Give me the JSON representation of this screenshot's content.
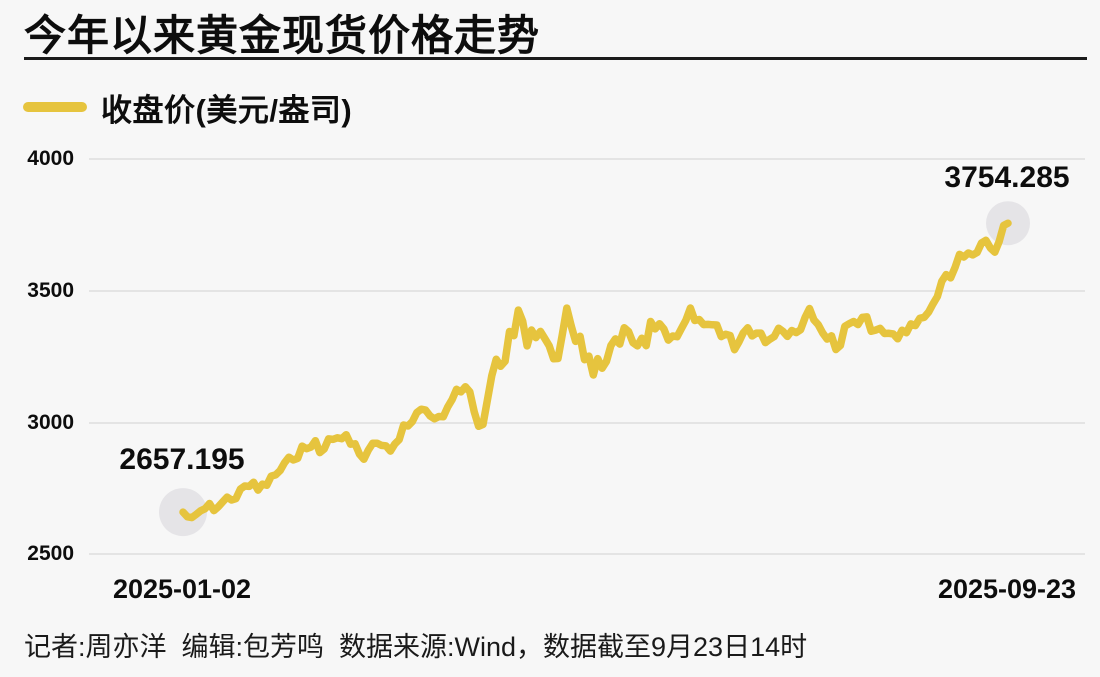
{
  "header": {
    "title": "今年以来黄金现货价格走势"
  },
  "legend": {
    "label": "收盘价(美元/盎司)"
  },
  "footer": {
    "text": "记者:周亦洋  编辑:包芳鸣  数据来源:Wind，数据截至9月23日14时"
  },
  "colors": {
    "line": "#e6c43e",
    "marker_halo": "#e5e4e7",
    "background": "#f7f7f7",
    "gridline": "#e4e4e4",
    "text": "#0d0d0d"
  },
  "chart_data": {
    "type": "line",
    "title": "今年以来黄金现货价格走势",
    "series_name": "收盘价(美元/盎司)",
    "ylabel": "美元/盎司",
    "ylim": [
      2500,
      4000
    ],
    "y_ticks": [
      4000,
      3500,
      3000,
      2500
    ],
    "grid": "horizontal-only",
    "legend_position": "top-left",
    "x_start_label": "2025-01-02",
    "x_end_label": "2025-09-23",
    "start_point": {
      "label": "2657.195",
      "value": 2657.195
    },
    "end_point": {
      "label": "3754.285",
      "value": 3754.285
    },
    "values": [
      2657.195,
      2639.5,
      2636.5,
      2648.5,
      2662.3,
      2670.0,
      2689.8,
      2663.0,
      2677.4,
      2696.1,
      2714.0,
      2703.0,
      2708.2,
      2744.5,
      2756.5,
      2754.9,
      2770.6,
      2740.6,
      2763.4,
      2759.0,
      2794.0,
      2798.5,
      2814.9,
      2844.3,
      2865.8,
      2855.1,
      2861.1,
      2908.0,
      2898.1,
      2903.9,
      2928.3,
      2883.0,
      2897.0,
      2935.0,
      2933.3,
      2939.5,
      2936.1,
      2951.3,
      2915.0,
      2916.5,
      2877.0,
      2857.8,
      2892.5,
      2918.5,
      2919.0,
      2910.5,
      2909.1,
      2888.9,
      2915.8,
      2932.6,
      2988.0,
      2984.2,
      3001.1,
      3034.9,
      3047.8,
      3044.5,
      3022.2,
      3011.5,
      3020.4,
      3019.5,
      3056.5,
      3084.5,
      3123.5,
      3113.8,
      3133.3,
      3114.2,
      3038.3,
      2983.0,
      2990.3,
      3082.5,
      3175.5,
      3237.6,
      3210.9,
      3229.8,
      3343.1,
      3326.9,
      3424.4,
      3381.6,
      3288.5,
      3348.7,
      3319.7,
      3343.6,
      3316.5,
      3288.7,
      3239.3,
      3240.5,
      3333.6,
      3431.8,
      3364.6,
      3305.5,
      3325.0,
      3235.9,
      3249.7,
      3177.7,
      3240.1,
      3203.6,
      3230.0,
      3290.0,
      3314.8,
      3295.3,
      3357.5,
      3342.6,
      3300.5,
      3288.4,
      3317.4,
      3289.3,
      3381.1,
      3352.8,
      3372.5,
      3352.5,
      3310.4,
      3325.9,
      3323.3,
      3355.0,
      3386.1,
      3432.3,
      3384.9,
      3388.6,
      3369.2,
      3370.1,
      3368.3,
      3367.6,
      3323.5,
      3332.4,
      3327.8,
      3274.0,
      3303.1,
      3338.2,
      3357.1,
      3326.2,
      3337.0,
      3336.9,
      3301.0,
      3313.4,
      3323.6,
      3355.6,
      3343.3,
      3324.6,
      3347.0,
      3338.7,
      3349.9,
      3396.6,
      3430.5,
      3387.2,
      3368.3,
      3337.3,
      3314.3,
      3326.6,
      3274.7,
      3289.9,
      3362.6,
      3372.8,
      3381.0,
      3369.3,
      3397.0,
      3398.3,
      3343.9,
      3348.3,
      3355.3,
      3335.3,
      3336.2,
      3333.7,
      3315.3,
      3348.0,
      3338.6,
      3371.9,
      3365.4,
      3393.2,
      3396.8,
      3416.6,
      3447.9,
      3475.8,
      3533.5,
      3559.3,
      3546.4,
      3586.7,
      3636.0,
      3625.8,
      3641.3,
      3634.1,
      3643.1,
      3679.0,
      3689.3,
      3660.1,
      3644.3,
      3685.3,
      3745.4,
      3754.285
    ]
  }
}
